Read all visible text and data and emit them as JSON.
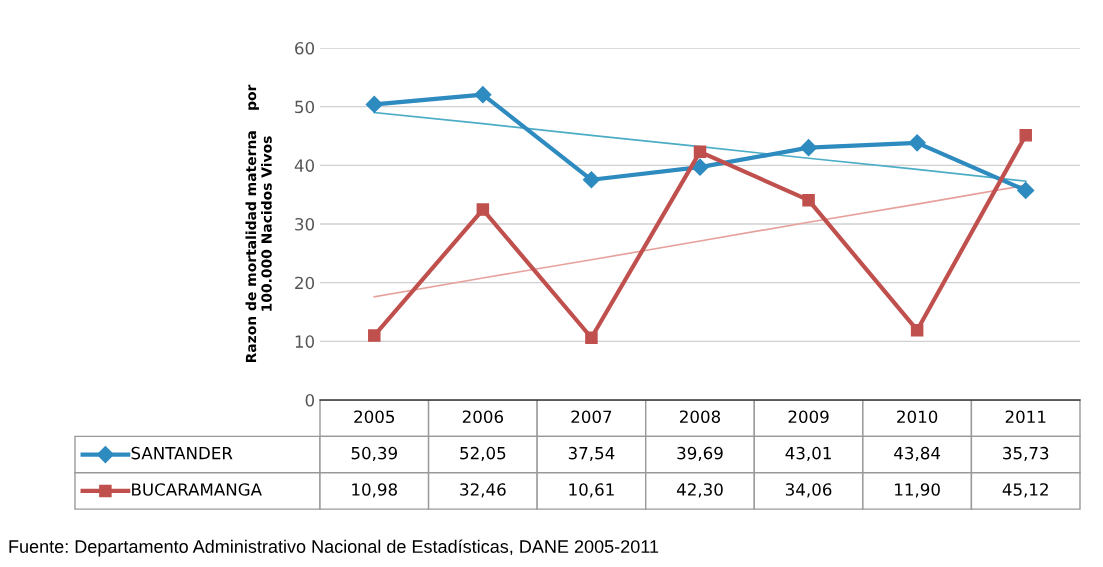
{
  "chart_data": {
    "type": "line",
    "ylabel": "Razon de mortalidad materna    por\n100.000 Nacidos Vivos",
    "categories": [
      "2005",
      "2006",
      "2007",
      "2008",
      "2009",
      "2010",
      "2011"
    ],
    "series": [
      {
        "name": "SANTANDER",
        "color": "#2e8bc0",
        "marker": "diamond",
        "values": [
          50.39,
          52.05,
          37.54,
          39.69,
          43.01,
          43.84,
          35.73
        ],
        "value_labels": [
          "50,39",
          "52,05",
          "37,54",
          "39,69",
          "43,01",
          "43,84",
          "35,73"
        ]
      },
      {
        "name": "BUCARAMANGA",
        "color": "#c0504d",
        "marker": "square",
        "values": [
          10.98,
          32.46,
          10.61,
          42.3,
          34.06,
          11.9,
          45.12
        ],
        "value_labels": [
          "10,98",
          "32,46",
          "10,61",
          "42,30",
          "34,06",
          "11,90",
          "45,12"
        ]
      },
      {
        "type": "line",
        "color": "#4bacc6",
        "marker": "none",
        "values": [
          49.0,
          47.1,
          45.1,
          43.2,
          41.2,
          39.3,
          37.3
        ]
      },
      {
        "type": "line",
        "color": "#e6a19d",
        "marker": "none",
        "values": [
          17.6,
          20.8,
          23.9,
          27.1,
          30.3,
          33.4,
          36.6
        ]
      }
    ],
    "ylim": [
      0,
      60
    ],
    "yticks": [
      0,
      10,
      20,
      30,
      40,
      50,
      60
    ],
    "grid": "y",
    "tick_labels": "y",
    "legend": "bottom left",
    "annotations": [
      "Fuente: Departamento Administrativo Nacional de Estadísticas, DANE 2005-2011"
    ]
  }
}
